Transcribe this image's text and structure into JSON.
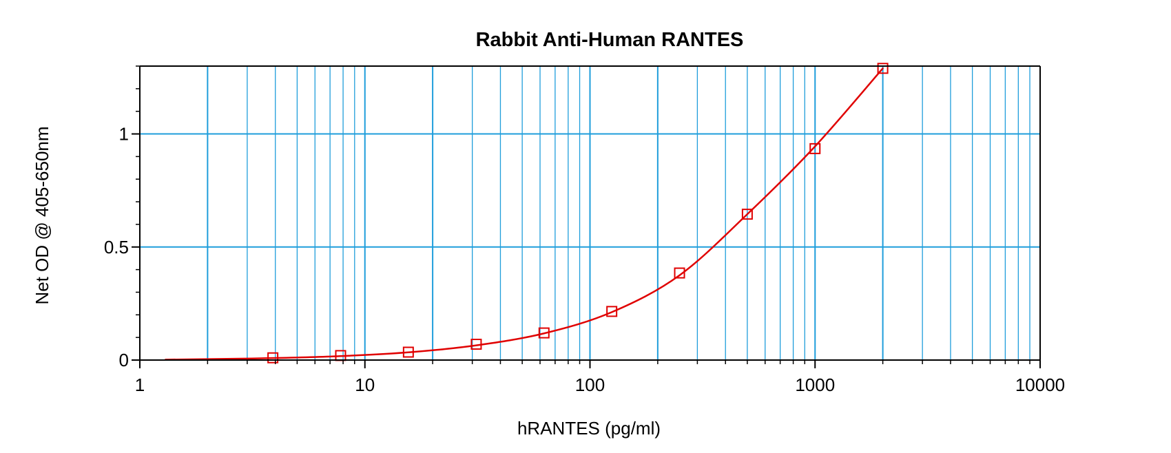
{
  "chart_data": {
    "type": "scatter",
    "title": "Rabbit Anti-Human RANTES",
    "xlabel": "hRANTES (pg/ml)",
    "ylabel": "Net OD @ 405-650nm",
    "xscale": "log",
    "xlim": [
      1,
      10000
    ],
    "ylim": [
      0,
      1.3
    ],
    "grid": true,
    "x_tick_labels": [
      "1",
      "10",
      "100",
      "1000",
      "10000"
    ],
    "x_tick_values": [
      1,
      10,
      100,
      1000,
      10000
    ],
    "y_tick_labels": [
      "0",
      "0.5",
      "1"
    ],
    "y_tick_values": [
      0,
      0.5,
      1
    ],
    "series": [
      {
        "x": [
          3.9,
          7.8,
          15.6,
          31.25,
          62.5,
          125,
          250,
          500,
          1000,
          2000
        ],
        "y": [
          0.01,
          0.02,
          0.035,
          0.07,
          0.12,
          0.215,
          0.385,
          0.645,
          0.935,
          1.29
        ]
      }
    ],
    "fit_curve": {
      "x": [
        1.3,
        2,
        4,
        8,
        16,
        31.25,
        62.5,
        125,
        250,
        500,
        1000,
        2000
      ],
      "y": [
        0.002,
        0.004,
        0.009,
        0.018,
        0.035,
        0.065,
        0.118,
        0.212,
        0.375,
        0.645,
        0.945,
        1.29
      ]
    },
    "colors": {
      "grid": "#1e9ddb",
      "series": "#e00000",
      "axis": "#000000"
    }
  }
}
